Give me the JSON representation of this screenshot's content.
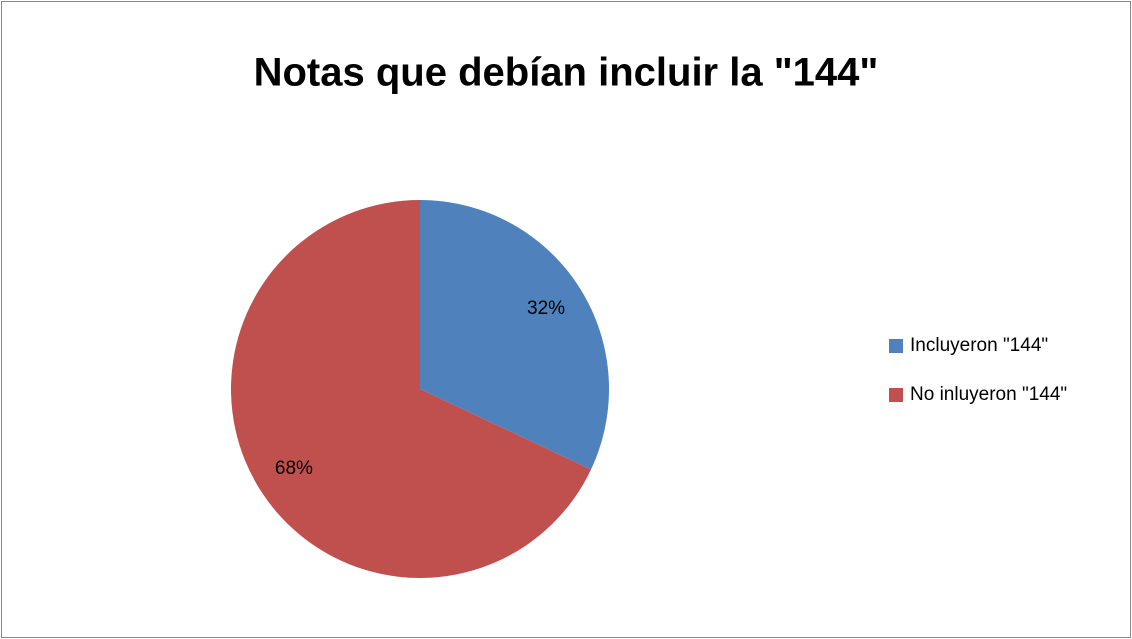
{
  "chart_data": {
    "type": "pie",
    "title": "Notas que debían incluir la \"144\"",
    "categories": [
      "Incluyeron \"144\"",
      "No inluyeron \"144\""
    ],
    "values": [
      32,
      68
    ],
    "value_labels": [
      "32%",
      "68%"
    ],
    "colors": [
      "#4f81bd",
      "#c0504d"
    ],
    "legend": "right"
  }
}
